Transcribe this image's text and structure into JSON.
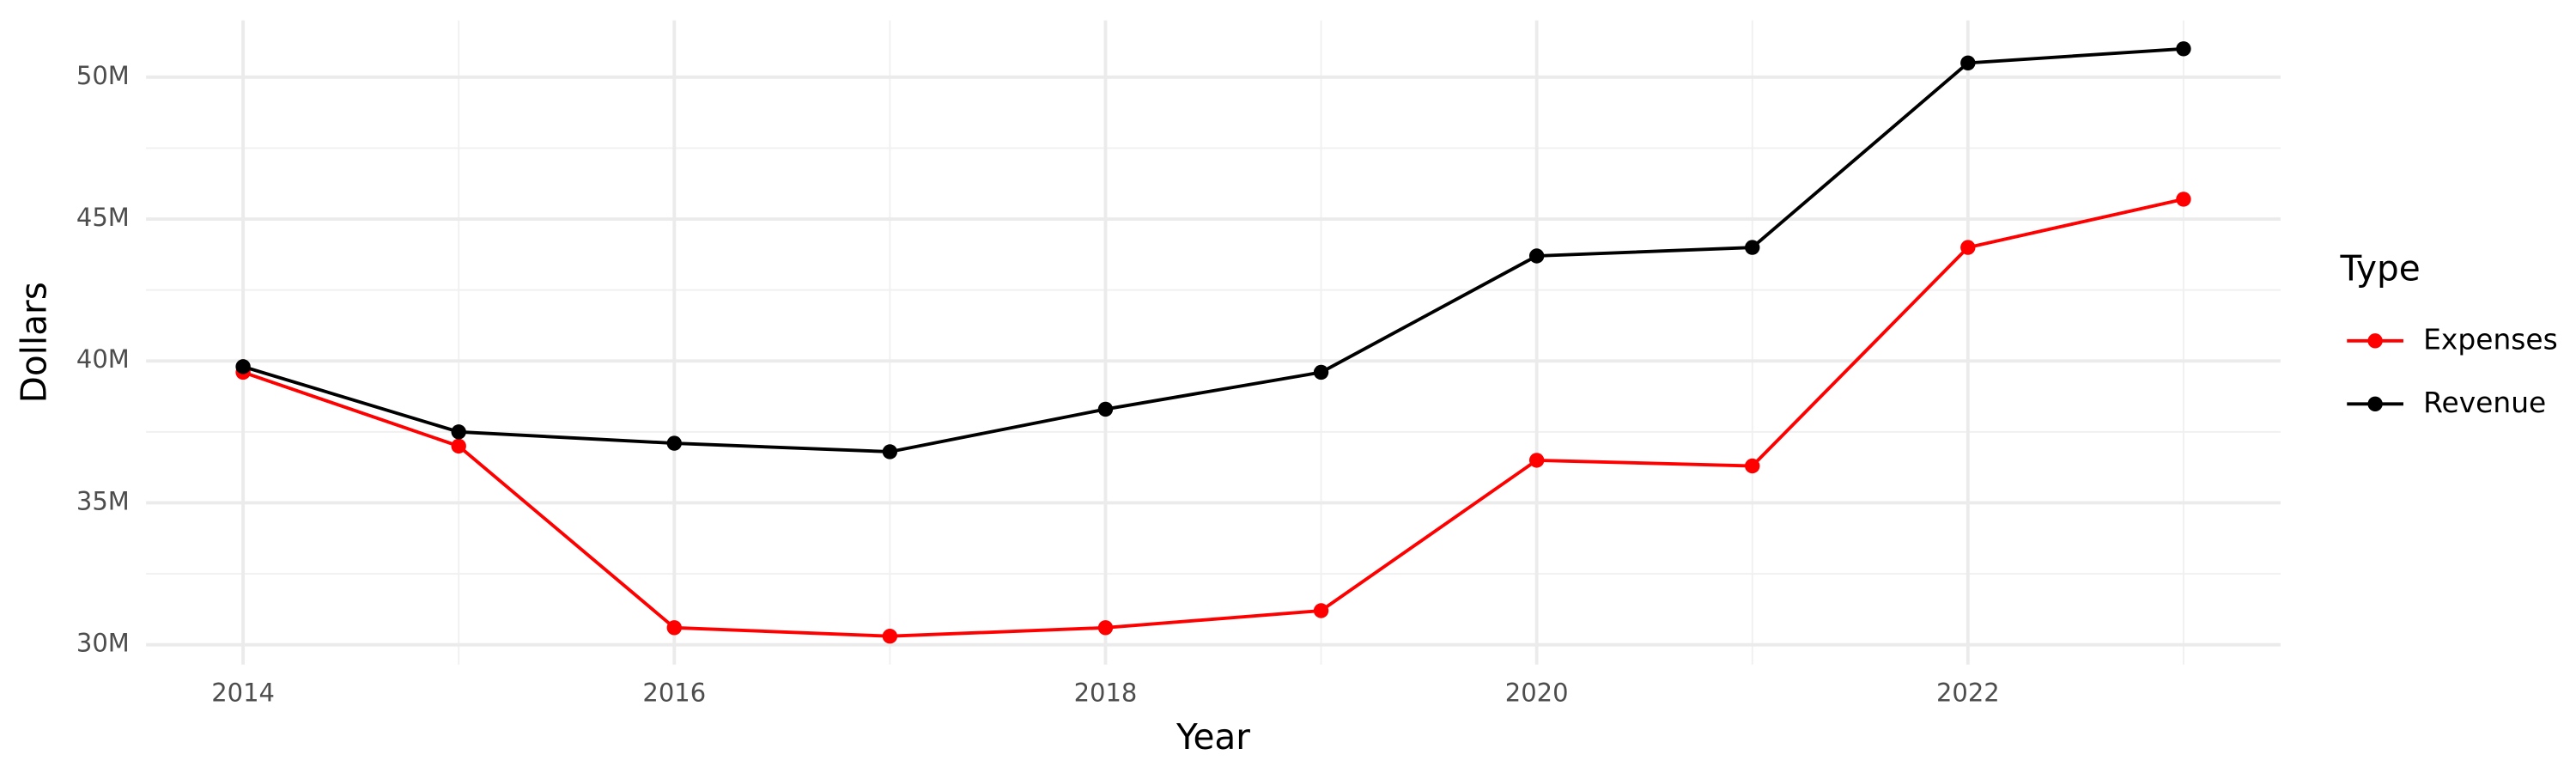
{
  "chart_data": {
    "type": "line",
    "x_label": "Year",
    "y_label": "Dollars",
    "x": [
      2014,
      2015,
      2016,
      2017,
      2018,
      2019,
      2020,
      2021,
      2022,
      2023
    ],
    "series": [
      {
        "name": "Expenses",
        "color": "#ff0000",
        "values": [
          39600000,
          37000000,
          30600000,
          30300000,
          30600000,
          31200000,
          36500000,
          36300000,
          44000000,
          45700000
        ]
      },
      {
        "name": "Revenue",
        "color": "#000000",
        "values": [
          39800000,
          37500000,
          37100000,
          36800000,
          38300000,
          39600000,
          43700000,
          44000000,
          50500000,
          51000000
        ]
      }
    ],
    "xlim": [
      2013.55,
      2023.45
    ],
    "xticks": [
      2014,
      2016,
      2018,
      2020,
      2022
    ],
    "ylim": [
      29300000,
      52000000
    ],
    "yticks": [
      {
        "value": 30000000,
        "label": "30M"
      },
      {
        "value": 35000000,
        "label": "35M"
      },
      {
        "value": 40000000,
        "label": "40M"
      },
      {
        "value": 45000000,
        "label": "45M"
      },
      {
        "value": 50000000,
        "label": "50M"
      }
    ],
    "grid": true,
    "legend_title": "Type",
    "legend_position": "right"
  }
}
